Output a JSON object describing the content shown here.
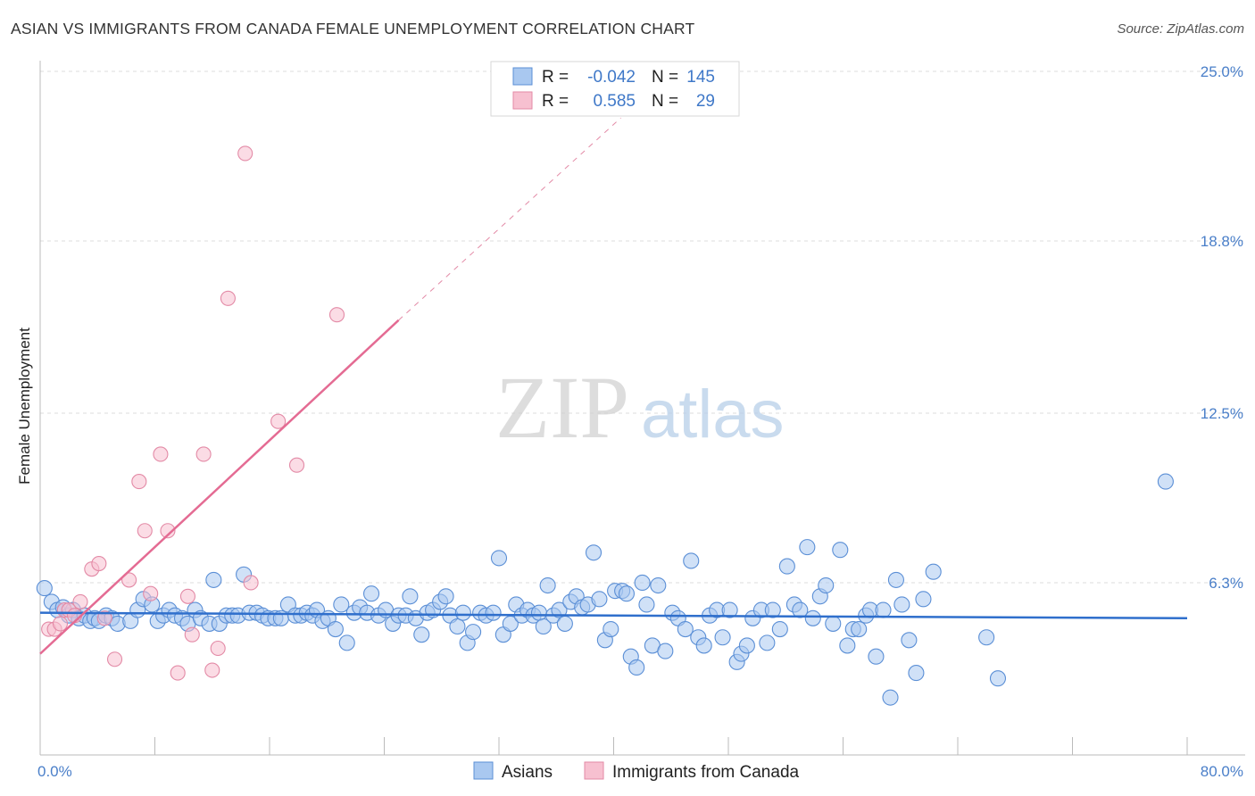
{
  "title": "ASIAN VS IMMIGRANTS FROM CANADA FEMALE UNEMPLOYMENT CORRELATION CHART",
  "source": "Source: ZipAtlas.com",
  "watermark": {
    "zip": "ZIP",
    "atlas": "atlas"
  },
  "colors": {
    "blue_fill": "#a9c8f0",
    "blue_stroke": "#5b8fd6",
    "blue_line": "#2f6fcc",
    "pink_fill": "#f7c0d0",
    "pink_stroke": "#e38aa6",
    "pink_line": "#e46b93",
    "grid": "#dcdcdc",
    "axis_label": "#4a7fc9"
  },
  "legend": {
    "rows": [
      {
        "r_label": "R =",
        "r_value": "-0.042",
        "n_label": "N =",
        "n_value": "145",
        "series": "Asians"
      },
      {
        "r_label": "R =",
        "r_value": "0.585",
        "n_label": "N =",
        "n_value": "29",
        "series": "Immigrants from Canada"
      }
    ]
  },
  "bottom_legend": [
    "Asians",
    "Immigrants from Canada"
  ],
  "chart_data": {
    "type": "scatter",
    "title": "ASIAN VS IMMIGRANTS FROM CANADA FEMALE UNEMPLOYMENT CORRELATION CHART",
    "xlabel": "",
    "ylabel": "Female Unemployment",
    "xlim": [
      0,
      80
    ],
    "ylim": [
      0,
      25
    ],
    "x_tick_labels": [
      "0.0%",
      "80.0%"
    ],
    "y_tick_values": [
      6.3,
      12.5,
      18.8,
      25.0
    ],
    "y_tick_labels": [
      "6.3%",
      "12.5%",
      "18.8%",
      "25.0%"
    ],
    "grid": true,
    "series": [
      {
        "name": "Asians",
        "R": -0.042,
        "N": 145,
        "trend": {
          "x": [
            0,
            80
          ],
          "y": [
            5.2,
            5.0
          ]
        },
        "points": [
          [
            0.3,
            6.1
          ],
          [
            0.8,
            5.6
          ],
          [
            1.2,
            5.3
          ],
          [
            1.6,
            5.4
          ],
          [
            2.0,
            5.1
          ],
          [
            2.3,
            5.3
          ],
          [
            2.7,
            5.0
          ],
          [
            3.1,
            5.1
          ],
          [
            3.5,
            4.9
          ],
          [
            3.8,
            5.0
          ],
          [
            4.1,
            4.9
          ],
          [
            4.6,
            5.1
          ],
          [
            5.0,
            5.0
          ],
          [
            5.4,
            4.8
          ],
          [
            6.3,
            4.9
          ],
          [
            6.8,
            5.3
          ],
          [
            7.2,
            5.7
          ],
          [
            7.8,
            5.5
          ],
          [
            8.2,
            4.9
          ],
          [
            8.6,
            5.1
          ],
          [
            9.0,
            5.3
          ],
          [
            9.4,
            5.1
          ],
          [
            9.9,
            5.0
          ],
          [
            10.3,
            4.8
          ],
          [
            10.8,
            5.3
          ],
          [
            11.2,
            5.0
          ],
          [
            11.8,
            4.8
          ],
          [
            12.1,
            6.4
          ],
          [
            12.5,
            4.8
          ],
          [
            13.0,
            5.1
          ],
          [
            13.4,
            5.1
          ],
          [
            13.8,
            5.1
          ],
          [
            14.2,
            6.6
          ],
          [
            14.6,
            5.2
          ],
          [
            15.1,
            5.2
          ],
          [
            15.5,
            5.1
          ],
          [
            15.9,
            5.0
          ],
          [
            16.4,
            5.0
          ],
          [
            16.8,
            5.0
          ],
          [
            17.3,
            5.5
          ],
          [
            17.8,
            5.1
          ],
          [
            18.2,
            5.1
          ],
          [
            18.6,
            5.2
          ],
          [
            19.0,
            5.1
          ],
          [
            19.3,
            5.3
          ],
          [
            19.7,
            4.9
          ],
          [
            20.1,
            5.0
          ],
          [
            20.6,
            4.6
          ],
          [
            21.0,
            5.5
          ],
          [
            21.4,
            4.1
          ],
          [
            21.9,
            5.2
          ],
          [
            22.3,
            5.4
          ],
          [
            22.8,
            5.2
          ],
          [
            23.1,
            5.9
          ],
          [
            23.6,
            5.1
          ],
          [
            24.1,
            5.3
          ],
          [
            24.6,
            4.8
          ],
          [
            25.0,
            5.1
          ],
          [
            25.5,
            5.1
          ],
          [
            25.8,
            5.8
          ],
          [
            26.2,
            5.0
          ],
          [
            26.6,
            4.4
          ],
          [
            27.0,
            5.2
          ],
          [
            27.4,
            5.3
          ],
          [
            27.9,
            5.6
          ],
          [
            28.3,
            5.8
          ],
          [
            28.6,
            5.1
          ],
          [
            29.1,
            4.7
          ],
          [
            29.5,
            5.2
          ],
          [
            29.8,
            4.1
          ],
          [
            30.2,
            4.5
          ],
          [
            30.7,
            5.2
          ],
          [
            31.1,
            5.1
          ],
          [
            31.6,
            5.2
          ],
          [
            32.0,
            7.2
          ],
          [
            32.3,
            4.4
          ],
          [
            32.8,
            4.8
          ],
          [
            33.2,
            5.5
          ],
          [
            33.6,
            5.1
          ],
          [
            34.0,
            5.3
          ],
          [
            34.4,
            5.1
          ],
          [
            34.8,
            5.2
          ],
          [
            35.1,
            4.7
          ],
          [
            35.4,
            6.2
          ],
          [
            35.8,
            5.1
          ],
          [
            36.2,
            5.3
          ],
          [
            36.6,
            4.8
          ],
          [
            37.0,
            5.6
          ],
          [
            37.4,
            5.8
          ],
          [
            37.8,
            5.4
          ],
          [
            38.2,
            5.5
          ],
          [
            38.6,
            7.4
          ],
          [
            39.0,
            5.7
          ],
          [
            39.4,
            4.2
          ],
          [
            39.8,
            4.6
          ],
          [
            40.1,
            6.0
          ],
          [
            40.6,
            6.0
          ],
          [
            40.9,
            5.9
          ],
          [
            41.2,
            3.6
          ],
          [
            41.6,
            3.2
          ],
          [
            42.0,
            6.3
          ],
          [
            42.3,
            5.5
          ],
          [
            42.7,
            4.0
          ],
          [
            43.1,
            6.2
          ],
          [
            43.6,
            3.8
          ],
          [
            44.1,
            5.2
          ],
          [
            44.5,
            5.0
          ],
          [
            45.0,
            4.6
          ],
          [
            45.4,
            7.1
          ],
          [
            45.9,
            4.3
          ],
          [
            46.3,
            4.0
          ],
          [
            46.7,
            5.1
          ],
          [
            47.2,
            5.3
          ],
          [
            47.6,
            4.3
          ],
          [
            48.1,
            5.3
          ],
          [
            48.6,
            3.4
          ],
          [
            48.9,
            3.7
          ],
          [
            49.3,
            4.0
          ],
          [
            49.7,
            5.0
          ],
          [
            50.3,
            5.3
          ],
          [
            50.7,
            4.1
          ],
          [
            51.1,
            5.3
          ],
          [
            51.6,
            4.6
          ],
          [
            52.1,
            6.9
          ],
          [
            52.6,
            5.5
          ],
          [
            53.0,
            5.3
          ],
          [
            53.5,
            7.6
          ],
          [
            53.9,
            5.0
          ],
          [
            54.4,
            5.8
          ],
          [
            54.8,
            6.2
          ],
          [
            55.3,
            4.8
          ],
          [
            55.8,
            7.5
          ],
          [
            56.3,
            4.0
          ],
          [
            56.7,
            4.6
          ],
          [
            57.1,
            4.6
          ],
          [
            57.6,
            5.1
          ],
          [
            57.9,
            5.3
          ],
          [
            58.3,
            3.6
          ],
          [
            58.8,
            5.3
          ],
          [
            59.3,
            2.1
          ],
          [
            59.7,
            6.4
          ],
          [
            60.1,
            5.5
          ],
          [
            60.6,
            4.2
          ],
          [
            61.1,
            3.0
          ],
          [
            61.6,
            5.7
          ],
          [
            62.3,
            6.7
          ],
          [
            66.0,
            4.3
          ],
          [
            66.8,
            2.8
          ],
          [
            78.5,
            10.0
          ]
        ]
      },
      {
        "name": "Immigrants from Canada",
        "R": 0.585,
        "N": 29,
        "trend": {
          "x": [
            0,
            25
          ],
          "y": [
            3.7,
            15.9
          ],
          "dashed_extension_to": [
            40.5,
            23.3
          ]
        },
        "points": [
          [
            0.6,
            4.6
          ],
          [
            1.0,
            4.6
          ],
          [
            1.4,
            4.8
          ],
          [
            1.7,
            5.3
          ],
          [
            2.0,
            5.3
          ],
          [
            2.4,
            5.1
          ],
          [
            2.8,
            5.6
          ],
          [
            3.6,
            6.8
          ],
          [
            4.1,
            7.0
          ],
          [
            4.5,
            5.0
          ],
          [
            5.2,
            3.5
          ],
          [
            6.2,
            6.4
          ],
          [
            6.9,
            10.0
          ],
          [
            7.3,
            8.2
          ],
          [
            7.7,
            5.9
          ],
          [
            8.4,
            11.0
          ],
          [
            8.9,
            8.2
          ],
          [
            9.6,
            3.0
          ],
          [
            10.3,
            5.8
          ],
          [
            10.6,
            4.4
          ],
          [
            11.4,
            11.0
          ],
          [
            12.0,
            3.1
          ],
          [
            12.4,
            3.9
          ],
          [
            13.1,
            16.7
          ],
          [
            14.3,
            22.0
          ],
          [
            14.7,
            6.3
          ],
          [
            16.6,
            12.2
          ],
          [
            17.9,
            10.6
          ],
          [
            20.7,
            16.1
          ]
        ]
      }
    ]
  }
}
